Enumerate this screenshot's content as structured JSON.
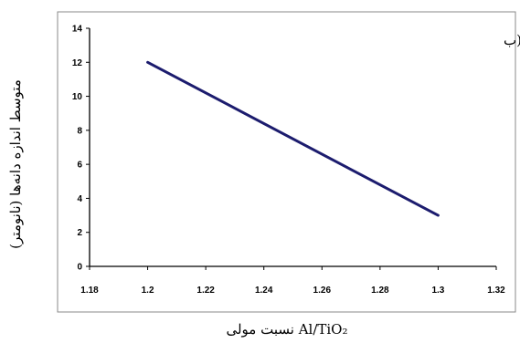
{
  "chart_data": {
    "type": "line",
    "panel_label": "(ب",
    "xlabel": "نسبت مولی Al/TiO₂",
    "ylabel": "متوسط اندازه دانه‌ها (نانومتر)",
    "x_ticks": [
      "1.18",
      "1.2",
      "1.22",
      "1.24",
      "1.26",
      "1.28",
      "1.3",
      "1.32"
    ],
    "y_ticks": [
      "0",
      "2",
      "4",
      "6",
      "8",
      "10",
      "12",
      "14"
    ],
    "xlim": [
      1.18,
      1.32
    ],
    "ylim": [
      0,
      14
    ],
    "grid": false,
    "series": [
      {
        "x": [
          1.2,
          1.3
        ],
        "y": [
          12,
          3
        ],
        "color": "#1c1c6e"
      }
    ]
  }
}
